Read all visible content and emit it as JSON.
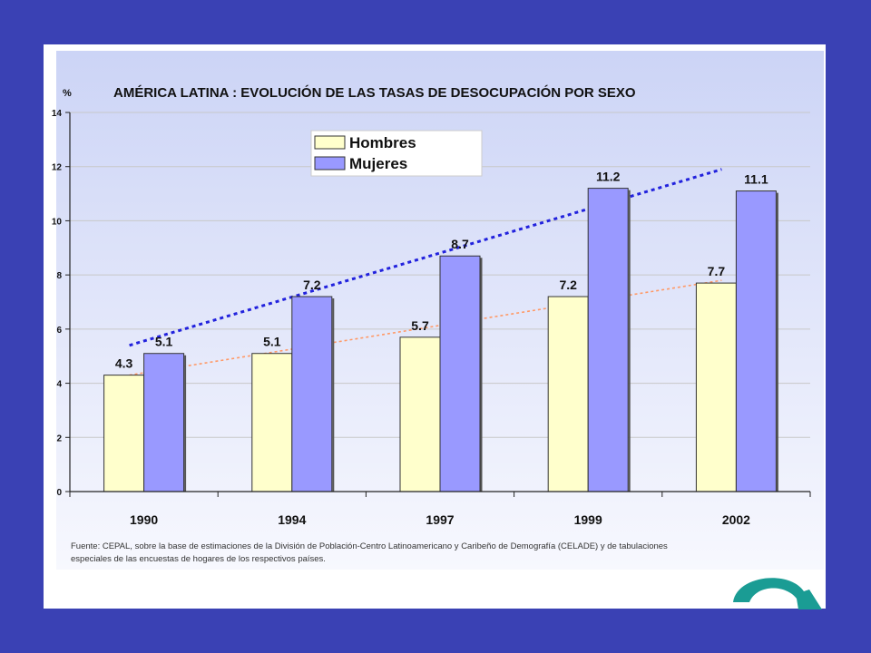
{
  "colors": {
    "background": "#3a41b4",
    "plot_gradient_top": "#ccd4f6",
    "plot_gradient_bottom": "#f7f8fe",
    "hombres": "#ffffcc",
    "mujeres": "#9999ff",
    "trend_hombres": "#ff9966",
    "trend_mujeres": "#2222dd",
    "arrow": "#1a9c94"
  },
  "chart_data": {
    "type": "bar",
    "title": "AMÉRICA LATINA : EVOLUCIÓN DE LAS TASAS DE DESOCUPACIÓN POR SEXO",
    "ylabel": "%",
    "xlabel": "",
    "ylim": [
      0,
      14
    ],
    "yticks": [
      "0",
      "2",
      "4",
      "6",
      "8",
      "10",
      "12",
      "14"
    ],
    "categories": [
      "1990",
      "1994",
      "1997",
      "1999",
      "2002"
    ],
    "series": [
      {
        "name": "Hombres",
        "values": [
          4.3,
          5.1,
          5.7,
          7.2,
          7.7
        ],
        "labels": [
          "4.3",
          "5.1",
          "5.7",
          "7.2",
          "7.7"
        ]
      },
      {
        "name": "Mujeres",
        "values": [
          5.1,
          7.2,
          8.7,
          11.2,
          11.1
        ],
        "labels": [
          "5.1",
          "7.2",
          "8.7",
          "11.2",
          "11.1"
        ]
      }
    ],
    "trendlines": [
      {
        "series": "Hombres",
        "style": "dotted",
        "start_value": 4.3,
        "end_value": 7.8
      },
      {
        "series": "Mujeres",
        "style": "dotted",
        "start_value": 5.4,
        "end_value": 11.9
      }
    ],
    "legend_position": "top-center",
    "grid": true
  },
  "source_note": {
    "line1": "Fuente: CEPAL, sobre la base de estimaciones de la División de Población-Centro Latinoamericano y Caribeño de Demografía (CELADE) y de tabulaciones",
    "line2": "especiales de las encuestas de hogares de los respectivos países."
  },
  "navigation": {
    "next_icon": "curved-arrow-next-icon"
  }
}
